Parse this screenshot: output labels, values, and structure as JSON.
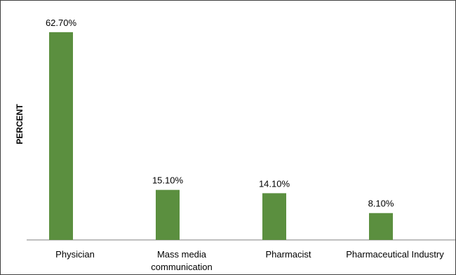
{
  "chart_data": {
    "type": "bar",
    "title": "",
    "xlabel": "",
    "ylabel": "PERCENT",
    "categories": [
      "Physician",
      "Mass media communication",
      "Pharmacist",
      "Pharmaceutical Industry"
    ],
    "category_lines": [
      [
        "Physician"
      ],
      [
        "Mass media",
        "communication"
      ],
      [
        "Pharmacist"
      ],
      [
        "Pharmaceutical Industry"
      ]
    ],
    "series": [
      {
        "values": [
          62.7,
          15.1,
          14.1,
          8.1
        ]
      }
    ],
    "data_labels": [
      "62.70%",
      "15.10%",
      "14.10%",
      "8.10%"
    ],
    "ylim": [
      0,
      65
    ],
    "grid": false,
    "legend": "none",
    "bar_color": "#5b8f3f",
    "axis_color": "#7f7f7f"
  }
}
